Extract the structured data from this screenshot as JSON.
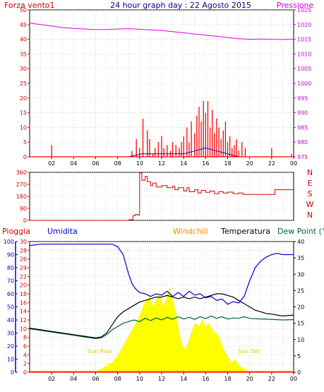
{
  "header": {
    "wind_label": "Forza vento1",
    "title": "24 hour graph day : 22 Agosto 2015",
    "pressure_label": "Pressione"
  },
  "mid_header": {
    "rain_label": "Pioggia",
    "humidity_label": "Umidita",
    "windchill_label": "Windchill",
    "temperature_label": "Temperatura",
    "dewpoint_label": "Dew Point (°C"
  },
  "annotations": {
    "sunrise": "Sun Rise",
    "sunset": "Sun Set"
  },
  "colors": {
    "wind": "#ff0000",
    "pressure": "#dd00dd",
    "direction": "#cc0000",
    "humidity": "#0000cc",
    "temperature": "#000000",
    "dewpoint": "#006633",
    "rain": "#ff0000",
    "windchill": "#ff8800",
    "solar": "#ffff00",
    "grid": "#c0c0c0",
    "frame": "#000000"
  },
  "chart_data": [
    {
      "type": "bar",
      "name": "wind-pressure",
      "x_ticks": [
        "02",
        "04",
        "06",
        "08",
        "10",
        "12",
        "14",
        "16",
        "18",
        "20",
        "22",
        "00"
      ],
      "xlim": [
        0,
        24
      ],
      "ylim_left": [
        0,
        50
      ],
      "ylim_right": [
        975,
        1025
      ],
      "y_ticks_left": [
        "0",
        "5",
        "10",
        "15",
        "20",
        "25",
        "30",
        "35",
        "40",
        "45",
        "50"
      ],
      "y_ticks_right": [
        "975",
        "980",
        "985",
        "990",
        "995",
        "1000",
        "1005",
        "1010",
        "1015",
        "1020",
        "1025"
      ],
      "wind_gusts": [
        [
          2.0,
          4
        ],
        [
          9.3,
          2
        ],
        [
          9.7,
          6
        ],
        [
          10.0,
          3
        ],
        [
          10.3,
          13
        ],
        [
          10.7,
          9
        ],
        [
          10.9,
          6
        ],
        [
          11.2,
          1
        ],
        [
          11.4,
          3
        ],
        [
          11.7,
          5
        ],
        [
          12.0,
          7
        ],
        [
          12.2,
          3
        ],
        [
          12.5,
          4
        ],
        [
          12.8,
          2
        ],
        [
          13.0,
          5
        ],
        [
          13.3,
          4
        ],
        [
          13.6,
          3
        ],
        [
          13.8,
          5
        ],
        [
          14.0,
          7
        ],
        [
          14.3,
          10
        ],
        [
          14.5,
          5
        ],
        [
          14.7,
          12
        ],
        [
          15.0,
          8
        ],
        [
          15.2,
          14
        ],
        [
          15.4,
          17
        ],
        [
          15.6,
          12
        ],
        [
          15.8,
          19
        ],
        [
          16.0,
          15
        ],
        [
          16.2,
          19
        ],
        [
          16.4,
          10
        ],
        [
          16.6,
          16
        ],
        [
          16.8,
          8
        ],
        [
          17.0,
          13
        ],
        [
          17.2,
          10
        ],
        [
          17.4,
          6
        ],
        [
          17.6,
          9
        ],
        [
          17.8,
          12
        ],
        [
          18.0,
          5
        ],
        [
          18.2,
          7
        ],
        [
          18.4,
          3
        ],
        [
          18.6,
          4
        ],
        [
          18.8,
          6
        ],
        [
          19.0,
          2
        ],
        [
          19.3,
          5
        ],
        [
          19.6,
          3
        ],
        [
          22.0,
          3
        ],
        [
          23.8,
          1
        ]
      ],
      "wind_avg": [
        [
          0,
          0
        ],
        [
          9.0,
          0
        ],
        [
          10.2,
          1
        ],
        [
          11.5,
          1
        ],
        [
          12.5,
          1
        ],
        [
          14.0,
          1
        ],
        [
          15.0,
          2
        ],
        [
          16.0,
          3
        ],
        [
          17.0,
          2
        ],
        [
          18.0,
          1
        ],
        [
          19.0,
          0
        ],
        [
          24,
          0
        ]
      ],
      "pressure": [
        [
          0,
          1020.5
        ],
        [
          1,
          1020.0
        ],
        [
          2,
          1019.5
        ],
        [
          3,
          1019.0
        ],
        [
          4,
          1018.7
        ],
        [
          5,
          1018.5
        ],
        [
          6,
          1018.3
        ],
        [
          7,
          1018.3
        ],
        [
          8,
          1018.5
        ],
        [
          9,
          1018.6
        ],
        [
          10,
          1018.4
        ],
        [
          11,
          1018.2
        ],
        [
          12,
          1018.0
        ],
        [
          13,
          1017.6
        ],
        [
          14,
          1017.2
        ],
        [
          15,
          1016.8
        ],
        [
          16,
          1016.4
        ],
        [
          17,
          1016.0
        ],
        [
          18,
          1015.6
        ],
        [
          19,
          1015.2
        ],
        [
          20,
          1015.0
        ],
        [
          21,
          1015.1
        ],
        [
          22,
          1015.0
        ],
        [
          23,
          1014.9
        ],
        [
          24,
          1015.1
        ]
      ]
    },
    {
      "type": "line",
      "name": "wind-direction",
      "xlim": [
        0,
        24
      ],
      "ylim": [
        0,
        360
      ],
      "y_ticks_left": [
        "0",
        "90",
        "180",
        "270",
        "360"
      ],
      "y_ticks_right": [
        "N",
        "E",
        "S",
        "W",
        "N"
      ],
      "direction": [
        [
          0,
          0
        ],
        [
          8.5,
          0
        ],
        [
          9.0,
          5
        ],
        [
          9.4,
          35
        ],
        [
          9.6,
          45
        ],
        [
          9.8,
          40
        ],
        [
          10.0,
          355
        ],
        [
          10.2,
          300
        ],
        [
          10.5,
          330
        ],
        [
          10.7,
          290
        ],
        [
          11.0,
          260
        ],
        [
          11.2,
          280
        ],
        [
          11.5,
          250
        ],
        [
          12.0,
          260
        ],
        [
          12.5,
          245
        ],
        [
          13.0,
          255
        ],
        [
          13.2,
          230
        ],
        [
          13.5,
          245
        ],
        [
          14.0,
          220
        ],
        [
          14.3,
          245
        ],
        [
          14.5,
          215
        ],
        [
          15.0,
          230
        ],
        [
          15.3,
          205
        ],
        [
          15.6,
          225
        ],
        [
          16.0,
          210
        ],
        [
          16.4,
          220
        ],
        [
          16.8,
          200
        ],
        [
          17.2,
          215
        ],
        [
          17.6,
          205
        ],
        [
          18.0,
          212
        ],
        [
          18.5,
          200
        ],
        [
          19.0,
          205
        ],
        [
          19.4,
          195
        ],
        [
          20.0,
          195
        ],
        [
          21.0,
          195
        ],
        [
          22.2,
          195
        ],
        [
          22.3,
          230
        ],
        [
          23.0,
          230
        ],
        [
          24,
          230
        ]
      ]
    },
    {
      "type": "line",
      "name": "humidity-temperature",
      "xlim": [
        0,
        24
      ],
      "ylim_rain": [
        0,
        30
      ],
      "ylim_humidity": [
        0,
        100
      ],
      "ylim_temp": [
        0,
        40
      ],
      "y_ticks_rain": [
        "0",
        "2",
        "4",
        "6",
        "8",
        "10",
        "12",
        "14",
        "16",
        "18",
        "20",
        "22",
        "24",
        "26",
        "28",
        "30"
      ],
      "y_ticks_humidity": [
        "0",
        "10",
        "20",
        "30",
        "40",
        "50",
        "60",
        "70",
        "80",
        "90",
        "100"
      ],
      "y_ticks_temp": [
        "0",
        "5",
        "10",
        "15",
        "20",
        "25",
        "30",
        "35",
        "40"
      ],
      "humidity": [
        [
          0,
          97
        ],
        [
          1,
          98
        ],
        [
          2,
          98
        ],
        [
          3,
          98
        ],
        [
          4,
          98
        ],
        [
          5,
          98
        ],
        [
          6,
          98
        ],
        [
          7,
          98
        ],
        [
          7.5,
          98
        ],
        [
          8.0,
          96
        ],
        [
          8.5,
          90
        ],
        [
          9.0,
          75
        ],
        [
          9.3,
          68
        ],
        [
          9.6,
          64
        ],
        [
          10,
          61
        ],
        [
          10.5,
          60
        ],
        [
          11,
          58
        ],
        [
          11.5,
          60
        ],
        [
          12,
          59
        ],
        [
          12.5,
          62
        ],
        [
          13,
          58
        ],
        [
          13.5,
          61
        ],
        [
          14,
          58
        ],
        [
          14.5,
          62
        ],
        [
          15,
          59
        ],
        [
          15.5,
          60
        ],
        [
          16,
          57
        ],
        [
          16.5,
          58
        ],
        [
          17,
          55
        ],
        [
          17.5,
          56
        ],
        [
          18,
          52
        ],
        [
          18.5,
          54
        ],
        [
          19,
          53
        ],
        [
          19.5,
          58
        ],
        [
          20,
          70
        ],
        [
          20.5,
          80
        ],
        [
          21,
          85
        ],
        [
          21.5,
          88
        ],
        [
          22,
          90
        ],
        [
          22.5,
          91
        ],
        [
          23,
          90
        ],
        [
          24,
          90
        ]
      ],
      "temperature": [
        [
          0,
          13.5
        ],
        [
          1,
          13.0
        ],
        [
          2,
          12.5
        ],
        [
          3,
          12.0
        ],
        [
          4,
          11.5
        ],
        [
          5,
          11.0
        ],
        [
          6,
          10.5
        ],
        [
          6.5,
          10.8
        ],
        [
          7,
          12
        ],
        [
          7.5,
          14.5
        ],
        [
          8,
          17
        ],
        [
          8.5,
          18.5
        ],
        [
          9,
          19.5
        ],
        [
          9.5,
          20.5
        ],
        [
          10,
          21.5
        ],
        [
          10.5,
          22
        ],
        [
          11,
          22.5
        ],
        [
          11.5,
          23
        ],
        [
          12,
          23
        ],
        [
          12.5,
          23.5
        ],
        [
          13,
          23
        ],
        [
          13.5,
          22.5
        ],
        [
          14,
          23
        ],
        [
          14.5,
          22.5
        ],
        [
          15,
          23
        ],
        [
          15.5,
          22.5
        ],
        [
          16,
          23
        ],
        [
          16.5,
          23.5
        ],
        [
          17,
          24
        ],
        [
          17.5,
          24
        ],
        [
          18,
          23.5
        ],
        [
          18.5,
          23
        ],
        [
          19,
          22
        ],
        [
          19.5,
          21
        ],
        [
          20,
          20
        ],
        [
          20.5,
          19
        ],
        [
          21,
          18.5
        ],
        [
          21.5,
          18
        ],
        [
          22,
          17.8
        ],
        [
          22.5,
          17.5
        ],
        [
          23,
          17.2
        ],
        [
          24,
          17.5
        ]
      ],
      "dewpoint": [
        [
          0,
          13.3
        ],
        [
          1,
          12.8
        ],
        [
          2,
          12.3
        ],
        [
          3,
          11.8
        ],
        [
          4,
          11.3
        ],
        [
          5,
          10.8
        ],
        [
          6,
          10.3
        ],
        [
          6.5,
          10.5
        ],
        [
          7,
          11.5
        ],
        [
          7.5,
          13
        ],
        [
          8,
          14
        ],
        [
          8.5,
          15
        ],
        [
          9,
          15.5
        ],
        [
          9.5,
          16
        ],
        [
          10,
          15.5
        ],
        [
          10.5,
          16.5
        ],
        [
          11,
          15.8
        ],
        [
          11.5,
          16.6
        ],
        [
          12,
          16
        ],
        [
          12.5,
          16.8
        ],
        [
          13,
          16.2
        ],
        [
          13.5,
          17
        ],
        [
          14,
          16.3
        ],
        [
          14.5,
          16.8
        ],
        [
          15,
          16.2
        ],
        [
          15.5,
          17
        ],
        [
          16,
          16.4
        ],
        [
          16.5,
          17.2
        ],
        [
          17,
          16.5
        ],
        [
          17.5,
          17
        ],
        [
          18,
          16.3
        ],
        [
          18.5,
          16.6
        ],
        [
          19,
          16.5
        ],
        [
          19.5,
          17
        ],
        [
          20,
          16.5
        ],
        [
          21,
          16.3
        ],
        [
          22,
          16.2
        ],
        [
          23,
          16.0
        ],
        [
          24,
          16.1
        ]
      ],
      "solar": [
        [
          6.0,
          0
        ],
        [
          6.5,
          1
        ],
        [
          7.0,
          2
        ],
        [
          7.5,
          3
        ],
        [
          8.0,
          5
        ],
        [
          8.5,
          8
        ],
        [
          9.0,
          11
        ],
        [
          9.5,
          14
        ],
        [
          10.0,
          17
        ],
        [
          10.3,
          20
        ],
        [
          10.6,
          22
        ],
        [
          10.9,
          23
        ],
        [
          11.2,
          20
        ],
        [
          11.5,
          22
        ],
        [
          11.8,
          24
        ],
        [
          12.1,
          20
        ],
        [
          12.4,
          22
        ],
        [
          12.7,
          26
        ],
        [
          13.0,
          22
        ],
        [
          13.3,
          18
        ],
        [
          13.6,
          12
        ],
        [
          13.9,
          8
        ],
        [
          14.2,
          7
        ],
        [
          14.5,
          10
        ],
        [
          14.8,
          13
        ],
        [
          15.1,
          15
        ],
        [
          15.4,
          14
        ],
        [
          15.7,
          16
        ],
        [
          16.0,
          14
        ],
        [
          16.3,
          15
        ],
        [
          16.6,
          13
        ],
        [
          16.9,
          12
        ],
        [
          17.2,
          11
        ],
        [
          17.5,
          8
        ],
        [
          17.8,
          6
        ],
        [
          18.1,
          4
        ],
        [
          18.4,
          3
        ],
        [
          18.7,
          4
        ],
        [
          19.0,
          2
        ],
        [
          19.5,
          1
        ],
        [
          20.0,
          0
        ]
      ],
      "rain": [
        [
          0,
          0
        ],
        [
          24,
          0
        ]
      ]
    }
  ]
}
